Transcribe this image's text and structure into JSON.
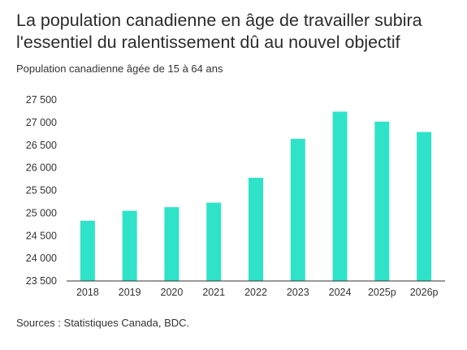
{
  "title": "La population canadienne en âge de travailler subira l'essentiel du ralentissement dû au nouvel objectif",
  "subtitle": "Population canadienne âgée de 15 à 64 ans",
  "source": "Sources : Statistiques Canada, BDC.",
  "colors": {
    "bar": "#2ee3c8",
    "axis": "#333333"
  },
  "chart_data": {
    "type": "bar",
    "title": "La population canadienne en âge de travailler subira l'essentiel du ralentissement dû au nouvel objectif",
    "subtitle": "Population canadienne âgée de 15 à 64 ans",
    "xlabel": "",
    "ylabel": "",
    "categories": [
      "2018",
      "2019",
      "2020",
      "2021",
      "2022",
      "2023",
      "2024",
      "2025p",
      "2026p"
    ],
    "values": [
      24830,
      25050,
      25130,
      25230,
      25780,
      26640,
      27240,
      27020,
      26790
    ],
    "ylim": [
      23500,
      27500
    ],
    "yticks": [
      23500,
      24000,
      24500,
      25000,
      25500,
      26000,
      26500,
      27000,
      27500
    ],
    "ytick_labels": [
      "23 500",
      "24 000",
      "24 500",
      "25 000",
      "25 500",
      "26 000",
      "26 500",
      "27 000",
      "27 500"
    ],
    "grid": false,
    "legend": "none"
  }
}
